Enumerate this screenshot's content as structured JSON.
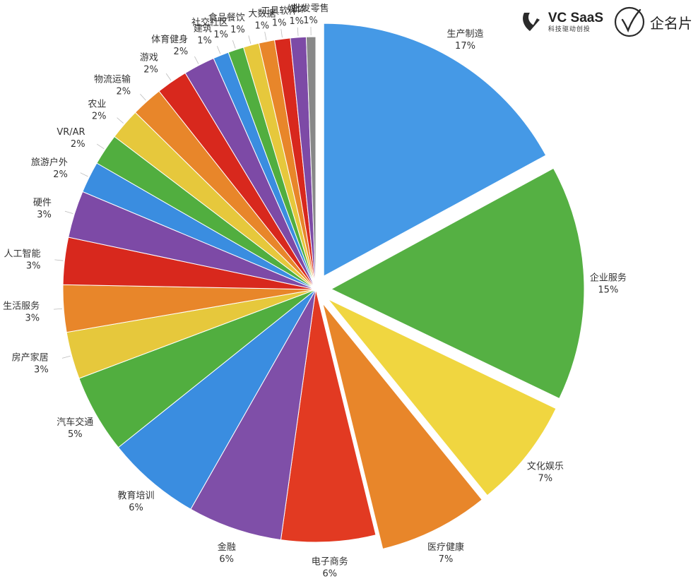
{
  "brand": {
    "vc_title": "VC SaaS",
    "vc_subtitle": "科技驱动创投",
    "qmp_name": "企名片"
  },
  "chart_data": {
    "type": "pie",
    "title": "",
    "exploded": [
      "生产制造",
      "企业服务",
      "文化娱乐",
      "医疗健康"
    ],
    "slices": [
      {
        "name": "生产制造",
        "value": 17,
        "label": "17%",
        "color": "#4599e6"
      },
      {
        "name": "企业服务",
        "value": 15,
        "label": "15%",
        "color": "#55b043"
      },
      {
        "name": "文化娱乐",
        "value": 7,
        "label": "7%",
        "color": "#f0d640"
      },
      {
        "name": "医疗健康",
        "value": 7,
        "label": "7%",
        "color": "#e8862a"
      },
      {
        "name": "电子商务",
        "value": 6,
        "label": "6%",
        "color": "#e23a22"
      },
      {
        "name": "金融",
        "value": 6,
        "label": "6%",
        "color": "#7f4fa8"
      },
      {
        "name": "教育培训",
        "value": 6,
        "label": "6%",
        "color": "#3a8de0"
      },
      {
        "name": "汽车交通",
        "value": 5,
        "label": "5%",
        "color": "#51ae3f"
      },
      {
        "name": "房产家居",
        "value": 3,
        "label": "3%",
        "color": "#e6c83c"
      },
      {
        "name": "生活服务",
        "value": 3,
        "label": "3%",
        "color": "#e8862a"
      },
      {
        "name": "人工智能",
        "value": 3,
        "label": "3%",
        "color": "#d8281d"
      },
      {
        "name": "硬件",
        "value": 3,
        "label": "3%",
        "color": "#7d4aa6"
      },
      {
        "name": "旅游户外",
        "value": 2,
        "label": "2%",
        "color": "#3a8de0"
      },
      {
        "name": "VR/AR",
        "value": 2,
        "label": "2%",
        "color": "#51ae3f"
      },
      {
        "name": "农业",
        "value": 2,
        "label": "2%",
        "color": "#e6c83c"
      },
      {
        "name": "物流运输",
        "value": 2,
        "label": "2%",
        "color": "#e8862a"
      },
      {
        "name": "游戏",
        "value": 2,
        "label": "2%",
        "color": "#d8281d"
      },
      {
        "name": "体育健身",
        "value": 2,
        "label": "2%",
        "color": "#7d4aa6"
      },
      {
        "name": "建筑",
        "value": 1,
        "label": "1%",
        "color": "#3a8de0"
      },
      {
        "name": "社交社区",
        "value": 1,
        "label": "1%",
        "color": "#51ae3f"
      },
      {
        "name": "食品餐饮",
        "value": 1,
        "label": "1%",
        "color": "#e6c83c"
      },
      {
        "name": "大数据",
        "value": 1,
        "label": "1%",
        "color": "#e8862a"
      },
      {
        "name": "工具软件",
        "value": 1,
        "label": "1%",
        "color": "#d8281d"
      },
      {
        "name": "媒体",
        "value": 1,
        "label": "1%",
        "color": "#7d4aa6"
      },
      {
        "name": "批发零售",
        "value": 0.6,
        "label": "1%",
        "color": "#888888"
      }
    ]
  }
}
